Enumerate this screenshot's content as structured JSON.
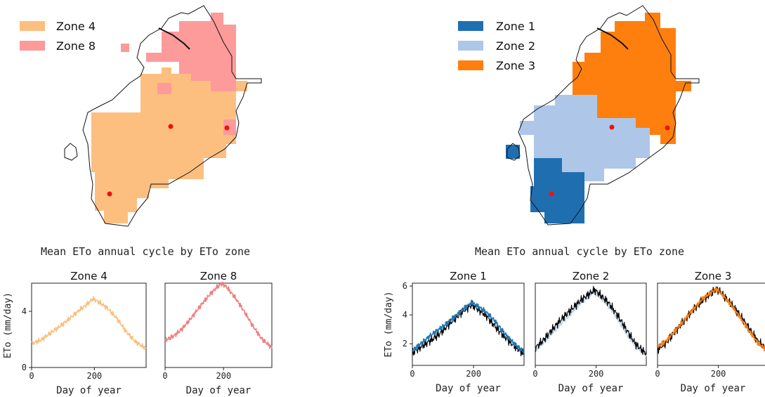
{
  "panels": [
    {
      "legend": [
        {
          "label": "Zone 4",
          "color": "#fdbf80"
        },
        {
          "label": "Zone 8",
          "color": "#fd9a9a"
        }
      ],
      "section_title": "Mean ETo annual cycle by ETo zone"
    },
    {
      "legend": [
        {
          "label": "Zone 1",
          "color": "#1f6fb0"
        },
        {
          "label": "Zone 2",
          "color": "#aec7e8"
        },
        {
          "label": "Zone 3",
          "color": "#ff7f0e"
        }
      ],
      "section_title": "Mean ETo annual cycle by ETo zone"
    }
  ],
  "chart_data": [
    {
      "type": "line",
      "title": "Zone 4",
      "xlabel": "Day of year",
      "ylabel": "ETo (mm/day)",
      "xlim": [
        0,
        365
      ],
      "ylim": [
        0,
        6
      ],
      "xticks": [
        0,
        200
      ],
      "yticks": [
        0,
        4
      ],
      "series": [
        {
          "color": "#fdbf80",
          "x": [
            1,
            30,
            60,
            90,
            120,
            150,
            180,
            195,
            210,
            240,
            270,
            300,
            330,
            365
          ],
          "values": [
            1.7,
            1.9,
            2.4,
            2.9,
            3.5,
            4.1,
            4.6,
            4.9,
            4.7,
            4.2,
            3.5,
            2.6,
            1.9,
            1.4
          ]
        }
      ]
    },
    {
      "type": "line",
      "title": "Zone 8",
      "xlabel": "Day of year",
      "ylim": [
        0,
        6
      ],
      "xlim": [
        0,
        365
      ],
      "xticks": [
        0,
        200
      ],
      "series": [
        {
          "color": "#f08080",
          "x": [
            1,
            30,
            60,
            90,
            120,
            150,
            180,
            195,
            210,
            240,
            270,
            300,
            330,
            365
          ],
          "values": [
            2.0,
            2.3,
            2.8,
            3.5,
            4.3,
            5.1,
            5.8,
            6.0,
            5.8,
            5.0,
            4.0,
            2.9,
            2.0,
            1.4
          ]
        }
      ]
    },
    {
      "type": "line",
      "title": "Zone 1",
      "xlabel": "Day of year",
      "ylabel": "ETo (mm/day)",
      "xlim": [
        0,
        365
      ],
      "ylim": [
        0.5,
        6.2
      ],
      "xticks": [
        0,
        200
      ],
      "yticks": [
        2,
        4,
        6
      ],
      "series": [
        {
          "color": "#000000",
          "x": [
            1,
            30,
            60,
            90,
            120,
            150,
            180,
            195,
            210,
            240,
            270,
            300,
            330,
            365
          ],
          "values": [
            1.3,
            1.8,
            2.3,
            2.8,
            3.4,
            3.9,
            4.4,
            4.6,
            4.4,
            4.0,
            3.3,
            2.6,
            1.9,
            1.2
          ]
        },
        {
          "color": "#1f77b4",
          "x": [
            1,
            30,
            60,
            90,
            120,
            150,
            180,
            195,
            210,
            240,
            270,
            300,
            330,
            365
          ],
          "values": [
            1.5,
            2.0,
            2.6,
            3.1,
            3.6,
            4.1,
            4.6,
            4.8,
            4.6,
            4.2,
            3.6,
            2.8,
            2.1,
            1.4
          ]
        }
      ]
    },
    {
      "type": "line",
      "title": "Zone 2",
      "xlabel": "Day of year",
      "ylim": [
        0.5,
        6.2
      ],
      "xlim": [
        0,
        365
      ],
      "xticks": [
        0,
        200
      ],
      "series": [
        {
          "color": "#c6d6ee",
          "x": [
            1,
            30,
            60,
            90,
            120,
            150,
            180,
            195,
            210,
            240,
            270,
            300,
            330,
            365
          ],
          "values": [
            1.6,
            2.1,
            2.8,
            3.5,
            4.2,
            4.9,
            5.4,
            5.6,
            5.3,
            4.6,
            3.7,
            2.7,
            1.9,
            1.3
          ]
        },
        {
          "color": "#000000",
          "x": [
            1,
            30,
            60,
            90,
            120,
            150,
            180,
            195,
            210,
            240,
            270,
            300,
            330,
            365
          ],
          "values": [
            1.8,
            2.3,
            3.0,
            3.7,
            4.4,
            5.1,
            5.6,
            5.8,
            5.5,
            4.8,
            3.9,
            2.9,
            2.0,
            1.4
          ]
        }
      ]
    },
    {
      "type": "line",
      "title": "Zone 3",
      "xlabel": "Day of year",
      "ylim": [
        0.5,
        6.2
      ],
      "xlim": [
        0,
        365
      ],
      "xticks": [
        0,
        200
      ],
      "series": [
        {
          "color": "#000000",
          "x": [
            1,
            30,
            60,
            90,
            120,
            150,
            180,
            195,
            210,
            240,
            270,
            300,
            330,
            365
          ],
          "values": [
            1.7,
            2.2,
            2.9,
            3.6,
            4.3,
            5.0,
            5.6,
            5.9,
            5.6,
            4.9,
            4.0,
            3.0,
            2.1,
            1.5
          ]
        },
        {
          "color": "#ff7f0e",
          "x": [
            1,
            30,
            60,
            90,
            120,
            150,
            180,
            195,
            210,
            240,
            270,
            300,
            330,
            365
          ],
          "values": [
            1.8,
            2.3,
            3.0,
            3.7,
            4.4,
            5.1,
            5.6,
            5.8,
            5.5,
            4.8,
            3.9,
            2.9,
            2.0,
            1.4
          ]
        }
      ]
    }
  ]
}
